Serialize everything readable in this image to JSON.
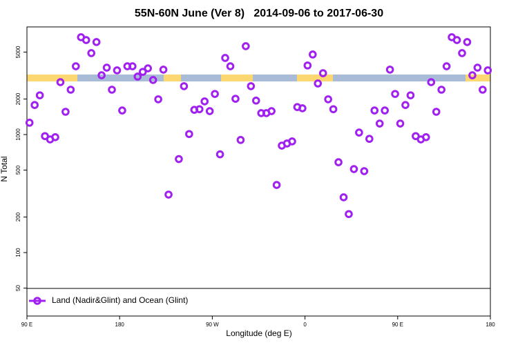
{
  "chart_data": {
    "type": "scatter",
    "title": "55N-60N June (Ver 8)   2014-09-06 to 2017-06-30",
    "xlabel": "Longitude (deg E)",
    "ylabel": "N Total",
    "log_y": true,
    "legend": "lower left",
    "xlim": [
      90,
      540
    ],
    "xticks": [
      {
        "value": 90,
        "label": "90 E"
      },
      180,
      {
        "value": 270,
        "label": "90 W"
      },
      {
        "value": 360,
        "label": "0"
      },
      {
        "value": 450,
        "label": "90 E"
      },
      {
        "value": 540,
        "label": "180"
      }
    ],
    "ylim": [
      29,
      8170
    ],
    "yticks": [
      50,
      100,
      200,
      500,
      1000,
      2000,
      5000
    ],
    "series": [
      {
        "name": "Land (Nadir&Glint) and Ocean (Glint)",
        "color": "#a020f0",
        "x": [
          92.5,
          97.5,
          102.5,
          107.5,
          112.5,
          117.5,
          122.5,
          127.5,
          132.5,
          137.5,
          142.5,
          147.5,
          152.5,
          157.5,
          162.5,
          167.5,
          172.5,
          177.5,
          182.5,
          187.5,
          192.5,
          197.5,
          202.5,
          207.5,
          212.5,
          217.5,
          222.5,
          227.5,
          237.5,
          242.5,
          247.5,
          252.5,
          257.5,
          262.5,
          267.5,
          272.5,
          277.5,
          282.5,
          287.5,
          292.5,
          297.5,
          302.5,
          307.5,
          312.5,
          317.5,
          322.5,
          327.5,
          332.5,
          337.5,
          342.5,
          347.5,
          352.5,
          357.5,
          362.5,
          367.5,
          372.5,
          377.5,
          382.5,
          387.5,
          392.5,
          397.5,
          402.5,
          407.5,
          412.5,
          417.5,
          422.5,
          427.5,
          432.5,
          437.5,
          442.5,
          447.5,
          452.5,
          457.5,
          462.5,
          467.5,
          472.5,
          477.5,
          482.5,
          487.5,
          492.5,
          497.5,
          502.5,
          507.5,
          512.5,
          517.5,
          522.5,
          527.5,
          532.5,
          537.5
        ],
        "values": [
          1260,
          1780,
          2150,
          970,
          910,
          950,
          2780,
          1560,
          2400,
          3790,
          6680,
          6320,
          4900,
          6080,
          3180,
          3690,
          2400,
          3500,
          1600,
          3790,
          3790,
          3100,
          3400,
          3640,
          2900,
          1990,
          3550,
          310,
          620,
          2570,
          1010,
          1620,
          1640,
          1910,
          1580,
          2210,
          680,
          4460,
          3790,
          2010,
          900,
          5610,
          2570,
          1940,
          1520,
          1520,
          1580,
          374,
          806,
          840,
          875,
          1710,
          1670,
          3850,
          4770,
          2710,
          3310,
          1990,
          1640,
          583,
          294,
          212,
          510,
          1040,
          490,
          920,
          1600,
          1240,
          1600,
          3550,
          2210,
          1240,
          1780,
          2150,
          970,
          910,
          950,
          2780,
          1560,
          2400,
          3790,
          6680,
          6320,
          4900,
          6080,
          3180,
          3690,
          2400,
          3500
        ]
      }
    ]
  }
}
